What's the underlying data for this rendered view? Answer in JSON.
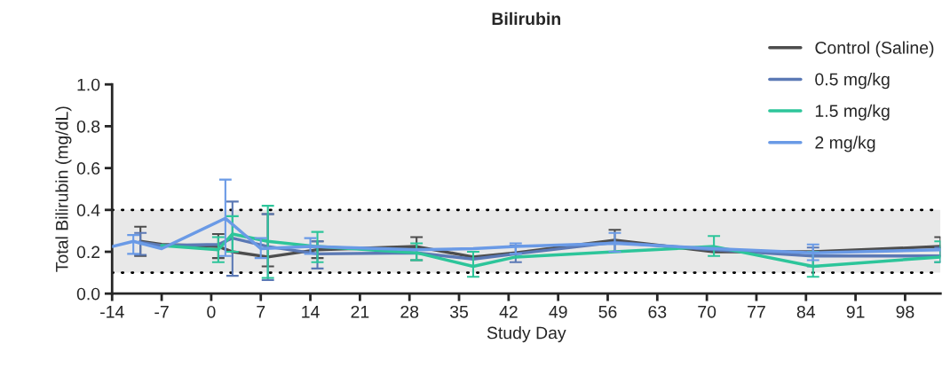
{
  "chart_data": {
    "type": "line",
    "title": "Bilirubin",
    "xlabel": "Study Day",
    "ylabel": "Total Bilirubin (mg/dL)",
    "xlim": [
      -14,
      103
    ],
    "xticks": [
      -14,
      -7,
      0,
      7,
      14,
      21,
      28,
      35,
      42,
      49,
      56,
      63,
      70,
      77,
      84,
      91,
      98
    ],
    "ylim": [
      0,
      1.0
    ],
    "yticks": [
      {
        "value": 0,
        "label": "0.0"
      },
      0.2,
      0.4,
      0.6,
      0.8,
      {
        "value": 1.0,
        "label": "1.0"
      }
    ],
    "grid": false,
    "legend": "top right",
    "marker": "none",
    "line_style": "solid",
    "bands": [
      {
        "axis": "y",
        "from": 0.1,
        "to": 0.4,
        "color": "#e8e8e8"
      }
    ],
    "ref_lines": [
      {
        "axis": "y",
        "value": 0.1,
        "line_style": "dotted",
        "color": "#000000"
      },
      {
        "axis": "y",
        "value": 0.4,
        "line_style": "dotted",
        "color": "#000000"
      }
    ],
    "series": [
      {
        "name": "Control (Saline)",
        "color": "#4d4d4d",
        "x": [
          -10,
          -7,
          1,
          3,
          8,
          15,
          29,
          37,
          43,
          57,
          71,
          85,
          103
        ],
        "values": [
          0.25,
          0.235,
          0.225,
          0.2,
          0.175,
          0.21,
          0.225,
          0.175,
          0.195,
          0.255,
          0.2,
          0.2,
          0.225
        ],
        "errors": [
          [
            0.18,
            0.32
          ],
          null,
          [
            0.17,
            0.285
          ],
          null,
          [
            0.13,
            0.38
          ],
          [
            0.17,
            0.25
          ],
          [
            0.16,
            0.27
          ],
          null,
          null,
          [
            0.2,
            0.305
          ],
          null,
          null,
          [
            0.18,
            0.27
          ]
        ]
      },
      {
        "name": "0.5 mg/kg",
        "color": "#5b79b5",
        "x": [
          -10,
          -7,
          1,
          3,
          8,
          15,
          29,
          37,
          43,
          57,
          71,
          85,
          103
        ],
        "values": [
          0.245,
          0.23,
          0.235,
          0.265,
          0.225,
          0.19,
          0.195,
          0.165,
          0.19,
          0.245,
          0.21,
          0.18,
          0.18
        ],
        "errors": [
          [
            0.185,
            0.29
          ],
          null,
          null,
          [
            0.085,
            0.44
          ],
          [
            0.065,
            0.38
          ],
          [
            0.12,
            0.25
          ],
          null,
          null,
          [
            0.15,
            0.23
          ],
          null,
          null,
          [
            0.13,
            0.22
          ],
          [
            0.15,
            0.22
          ]
        ]
      },
      {
        "name": "1.5 mg/kg",
        "color": "#2dc59a",
        "x": [
          -7,
          1,
          3,
          8,
          15,
          29,
          37,
          43,
          57,
          71,
          85,
          103
        ],
        "values": [
          0.23,
          0.21,
          0.285,
          0.25,
          0.225,
          0.195,
          0.13,
          0.175,
          0.2,
          0.225,
          0.13,
          0.175
        ],
        "errors": [
          null,
          [
            0.15,
            0.27
          ],
          [
            0.2,
            0.37
          ],
          [
            0.075,
            0.42
          ],
          [
            0.15,
            0.295
          ],
          [
            0.16,
            0.24
          ],
          [
            0.08,
            0.2
          ],
          null,
          null,
          [
            0.18,
            0.275
          ],
          [
            0.08,
            0.2
          ],
          [
            0.15,
            0.25
          ]
        ]
      },
      {
        "name": "2 mg/kg",
        "color": "#6a9ae6",
        "x": [
          -14,
          -11,
          -7,
          2,
          7,
          14,
          29,
          37,
          43,
          57,
          71,
          85,
          103
        ],
        "values": [
          0.225,
          0.25,
          0.215,
          0.36,
          0.215,
          0.225,
          0.21,
          0.215,
          0.225,
          0.24,
          0.215,
          0.195,
          0.21
        ],
        "errors": [
          null,
          [
            0.19,
            0.28
          ],
          null,
          [
            0.18,
            0.545
          ],
          [
            0.17,
            0.265
          ],
          [
            0.19,
            0.265
          ],
          null,
          null,
          [
            0.19,
            0.24
          ],
          [
            0.2,
            0.29
          ],
          null,
          [
            0.16,
            0.235
          ],
          null
        ]
      }
    ]
  }
}
